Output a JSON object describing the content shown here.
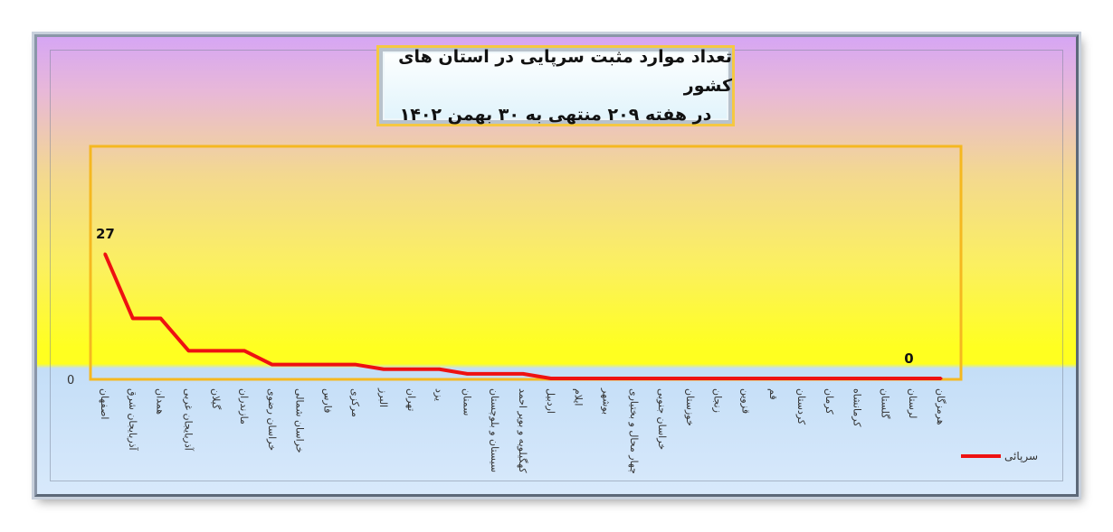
{
  "chart_data": {
    "type": "line",
    "title": [
      "تعداد موارد مثبت سرپایی در استان های کشور",
      "در هفته ۲۰۹ منتهی به ۳۰ بهمن ۱۴۰۲"
    ],
    "categories": [
      "اصفهان",
      "آذربایجان شرق",
      "همدان",
      "آذربایجان غربی",
      "گیلان",
      "مازندران",
      "خراسان رضوی",
      "خراسان شمالی",
      "فارس",
      "مرکزی",
      "البرز",
      "تهران",
      "یزد",
      "سمنان",
      "سیستان و بلوچستان",
      "کهگیلویه و بویر احمد",
      "اردبیل",
      "ایلام",
      "بوشهر",
      "چهار محال و بختیاری",
      "خراسان جنوبی",
      "خوزستان",
      "زنجان",
      "قزوین",
      "قم",
      "کردستان",
      "کرمان",
      "کرمانشاه",
      "گلستان",
      "لرستان",
      "هرمزگان"
    ],
    "series": [
      {
        "name": "سرپائی",
        "color": "#ee1111",
        "values": [
          27,
          13,
          13,
          6,
          6,
          6,
          3,
          3,
          3,
          3,
          2,
          2,
          2,
          1,
          1,
          1,
          0,
          0,
          0,
          0,
          0,
          0,
          0,
          0,
          0,
          0,
          0,
          0,
          0,
          0,
          0
        ]
      }
    ],
    "data_labels": [
      {
        "index": 0,
        "text": "27"
      },
      {
        "index": 29,
        "text": "0"
      }
    ],
    "y_tick_labels": [
      "0"
    ],
    "ylim": [
      0,
      27
    ],
    "grid": false,
    "legend": "bottom-right"
  }
}
